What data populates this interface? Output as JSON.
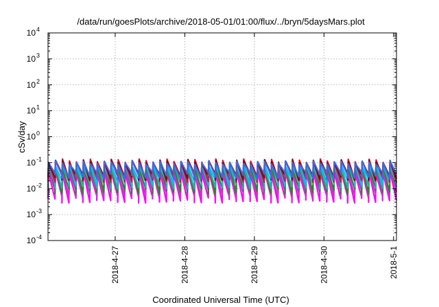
{
  "chart_data": {
    "type": "line",
    "title": "/data/run/goesPlots/archive/2018-05-01/01:00/flux/../bryn/5daysMars.plot",
    "xlabel": "Coordinated Universal Time (UTC)",
    "ylabel": "cSv/day",
    "y_scale": "log",
    "ylim": [
      0.0001,
      10000
    ],
    "y_ticks": [
      {
        "base": "10",
        "exp": "-4",
        "value": 0.0001
      },
      {
        "base": "10",
        "exp": "-3",
        "value": 0.001
      },
      {
        "base": "10",
        "exp": "-2",
        "value": 0.01
      },
      {
        "base": "10",
        "exp": "-1",
        "value": 0.1
      },
      {
        "base": "10",
        "exp": "0",
        "value": 1
      },
      {
        "base": "10",
        "exp": "1",
        "value": 10
      },
      {
        "base": "10",
        "exp": "2",
        "value": 100
      },
      {
        "base": "10",
        "exp": "3",
        "value": 1000
      },
      {
        "base": "10",
        "exp": "4",
        "value": 10000
      }
    ],
    "xlim": [
      "2018-04-26T00:50",
      "2018-05-01T01:00"
    ],
    "x_ticks": [
      {
        "label": "2018-4-27",
        "date": "2018-04-27"
      },
      {
        "label": "2018-4-28",
        "date": "2018-04-28"
      },
      {
        "label": "2018-4-29",
        "date": "2018-04-29"
      },
      {
        "label": "2018-4-30",
        "date": "2018-04-30"
      },
      {
        "label": "2018-5-1",
        "date": "2018-05-01"
      }
    ],
    "grid": true,
    "legend": "none",
    "pattern": {
      "shape": "sawtooth",
      "cycles_per_day": 10,
      "peak": 0.12,
      "trough": 0.005
    },
    "series": [
      {
        "color": "#ff00ff",
        "peak": 0.04,
        "trough": 0.004
      },
      {
        "color": "#cc33cc",
        "peak": 0.05,
        "trough": 0.0065
      },
      {
        "color": "#228b22",
        "peak": 0.065,
        "trough": 0.009
      },
      {
        "color": "#20b2aa",
        "peak": 0.075,
        "trough": 0.014
      },
      {
        "color": "#00bfff",
        "peak": 0.085,
        "trough": 0.02
      },
      {
        "color": "#dc143c",
        "peak": 0.12,
        "trough": 0.025
      },
      {
        "color": "#8b0000",
        "peak": 0.11,
        "trough": 0.03
      },
      {
        "color": "#4169e1",
        "peak": 0.1,
        "trough": 0.033
      }
    ]
  }
}
